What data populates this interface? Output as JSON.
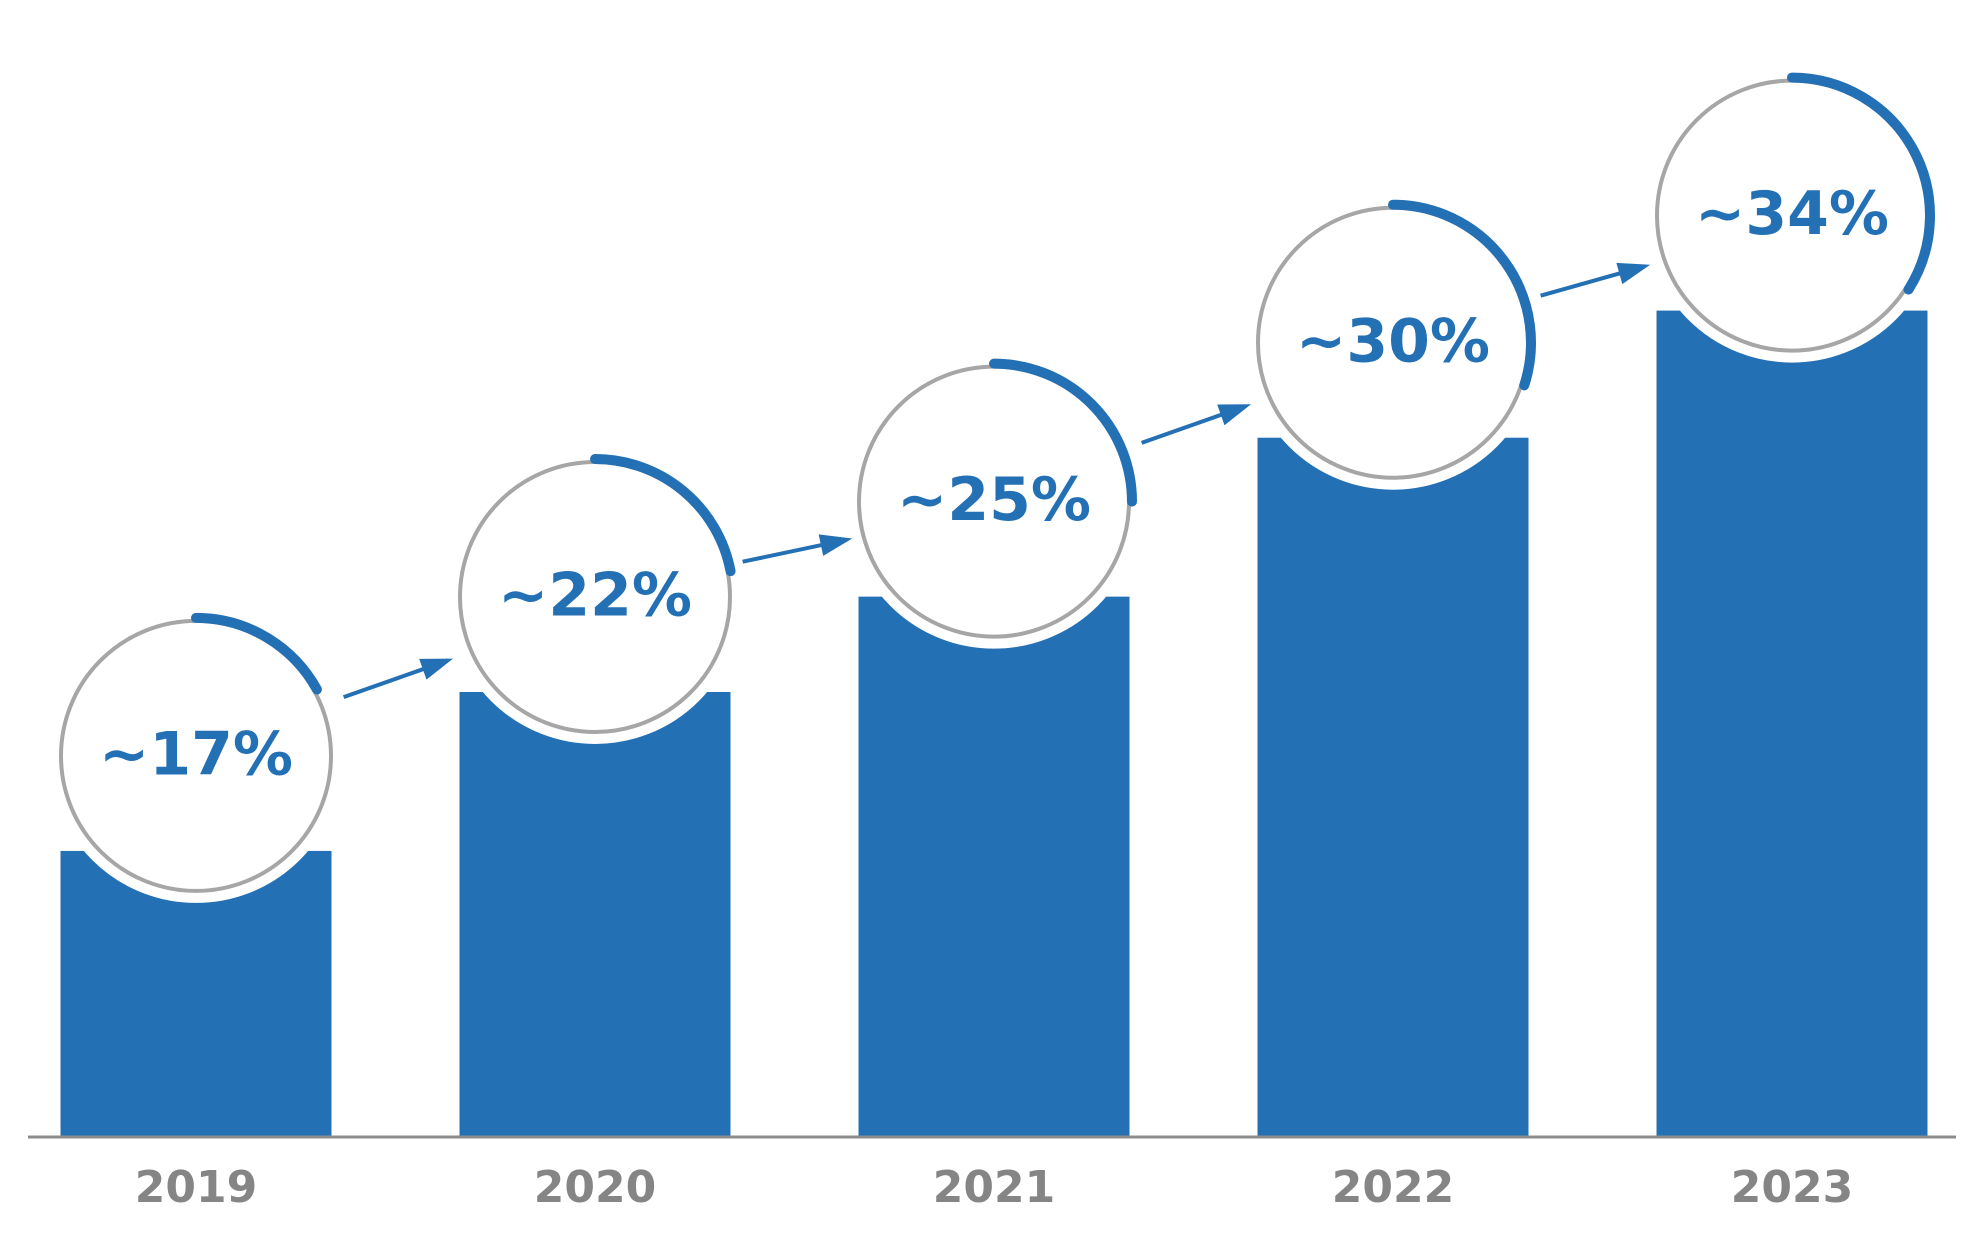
{
  "chart_data": {
    "type": "bar",
    "categories": [
      "2019",
      "2020",
      "2021",
      "2022",
      "2023"
    ],
    "values": [
      17,
      22,
      25,
      30,
      34
    ],
    "value_labels": [
      "~17%",
      "~22%",
      "~25%",
      "~30%",
      "~34%"
    ],
    "color": "#2470b5",
    "ylim": [
      8,
      36
    ]
  }
}
